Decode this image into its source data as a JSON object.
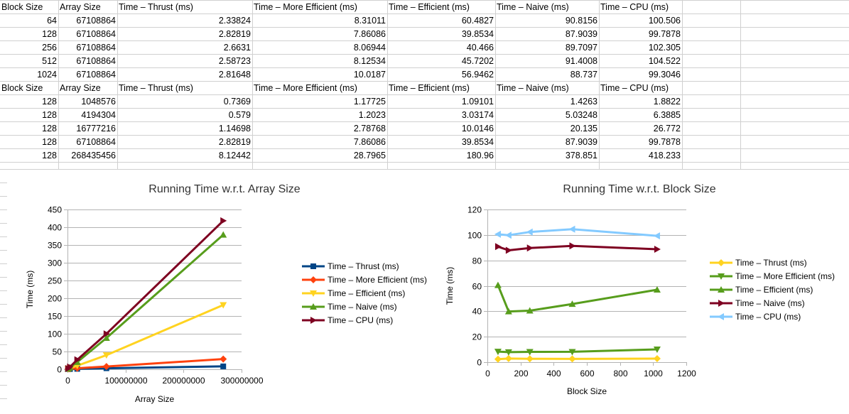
{
  "table1": {
    "headers": [
      "Block Size",
      "Array Size",
      "Time – Thrust (ms)",
      "Time – More Efficient (ms)",
      "Time – Efficient (ms)",
      "Time – Naive (ms)",
      "Time – CPU (ms)"
    ],
    "rows": [
      [
        "64",
        "67108864",
        "2.33824",
        "8.31011",
        "60.4827",
        "90.8156",
        "100.506"
      ],
      [
        "128",
        "67108864",
        "2.82819",
        "7.86086",
        "39.8534",
        "87.9039",
        "99.7878"
      ],
      [
        "256",
        "67108864",
        "2.6631",
        "8.06944",
        "40.466",
        "89.7097",
        "102.305"
      ],
      [
        "512",
        "67108864",
        "2.58723",
        "8.12534",
        "45.7202",
        "91.4008",
        "104.522"
      ],
      [
        "1024",
        "67108864",
        "2.81648",
        "10.0187",
        "56.9462",
        "88.737",
        "99.3046"
      ]
    ]
  },
  "table2": {
    "headers": [
      "Block Size",
      "Array Size",
      "Time – Thrust (ms)",
      "Time – More Efficient (ms)",
      "Time – Efficient (ms)",
      "Time – Naive (ms)",
      "Time – CPU (ms)"
    ],
    "rows": [
      [
        "128",
        "1048576",
        "0.7369",
        "1.17725",
        "1.09101",
        "1.4263",
        "1.8822"
      ],
      [
        "128",
        "4194304",
        "0.579",
        "1.2023",
        "3.03174",
        "5.03248",
        "6.3885"
      ],
      [
        "128",
        "16777216",
        "1.14698",
        "2.78768",
        "10.0146",
        "20.135",
        "26.772"
      ],
      [
        "128",
        "67108864",
        "2.82819",
        "7.86086",
        "39.8534",
        "87.9039",
        "99.7878"
      ],
      [
        "128",
        "268435456",
        "8.12442",
        "28.7965",
        "180.96",
        "378.851",
        "418.233"
      ]
    ]
  },
  "chart_data": [
    {
      "type": "line",
      "title": "Running Time w.r.t. Array Size",
      "xlabel": "Array Size",
      "ylabel": "Time (ms)",
      "xlim": [
        0,
        300000000
      ],
      "ylim": [
        0,
        450
      ],
      "xticks": [
        0,
        100000000,
        200000000,
        300000000
      ],
      "yticks": [
        0,
        50,
        100,
        150,
        200,
        250,
        300,
        350,
        400,
        450
      ],
      "grid": "horizontal",
      "legend": "right",
      "x": [
        1048576,
        4194304,
        16777216,
        67108864,
        268435456
      ],
      "series": [
        {
          "name": "Time – Thrust (ms)",
          "color": "#004586",
          "marker": "square",
          "values": [
            0.7369,
            0.579,
            1.14698,
            2.82819,
            8.12442
          ]
        },
        {
          "name": "Time – More Efficient (ms)",
          "color": "#ff420e",
          "marker": "diamond",
          "values": [
            1.17725,
            1.2023,
            2.78768,
            7.86086,
            28.7965
          ]
        },
        {
          "name": "Time – Efficient (ms)",
          "color": "#ffd320",
          "marker": "triangle-down",
          "values": [
            1.09101,
            3.03174,
            10.0146,
            39.8534,
            180.96
          ]
        },
        {
          "name": "Time – Naive (ms)",
          "color": "#579d1c",
          "marker": "triangle-up",
          "values": [
            1.4263,
            5.03248,
            20.135,
            87.9039,
            378.851
          ]
        },
        {
          "name": "Time – CPU (ms)",
          "color": "#7e0021",
          "marker": "triangle-right",
          "values": [
            1.8822,
            6.3885,
            26.772,
            99.7878,
            418.233
          ]
        }
      ]
    },
    {
      "type": "line",
      "title": "Running Time w.r.t. Block Size",
      "xlabel": "Block Size",
      "ylabel": "Time (ms)",
      "xlim": [
        0,
        1200
      ],
      "ylim": [
        0,
        120
      ],
      "xticks": [
        0,
        200,
        400,
        600,
        800,
        1000,
        1200
      ],
      "yticks": [
        0,
        20,
        40,
        60,
        80,
        100,
        120
      ],
      "grid": "horizontal",
      "legend": "right",
      "x": [
        64,
        128,
        256,
        512,
        1024
      ],
      "series": [
        {
          "name": "Time – Thrust (ms)",
          "color": "#ffd320",
          "marker": "diamond",
          "values": [
            2.33824,
            2.82819,
            2.6631,
            2.58723,
            2.81648
          ]
        },
        {
          "name": "Time – More Efficient (ms)",
          "color": "#579d1c",
          "marker": "triangle-down",
          "values": [
            8.31011,
            7.86086,
            8.06944,
            8.12534,
            10.0187
          ]
        },
        {
          "name": "Time – Efficient (ms)",
          "color": "#579d1c",
          "marker": "triangle-up",
          "values": [
            60.4827,
            39.8534,
            40.466,
            45.7202,
            56.9462
          ]
        },
        {
          "name": "Time – Naive (ms)",
          "color": "#7e0021",
          "marker": "triangle-right",
          "values": [
            90.8156,
            87.9039,
            89.7097,
            91.4008,
            88.737
          ]
        },
        {
          "name": "Time – CPU (ms)",
          "color": "#83caff",
          "marker": "triangle-left",
          "values": [
            100.506,
            99.7878,
            102.305,
            104.522,
            99.3046
          ]
        }
      ]
    }
  ]
}
